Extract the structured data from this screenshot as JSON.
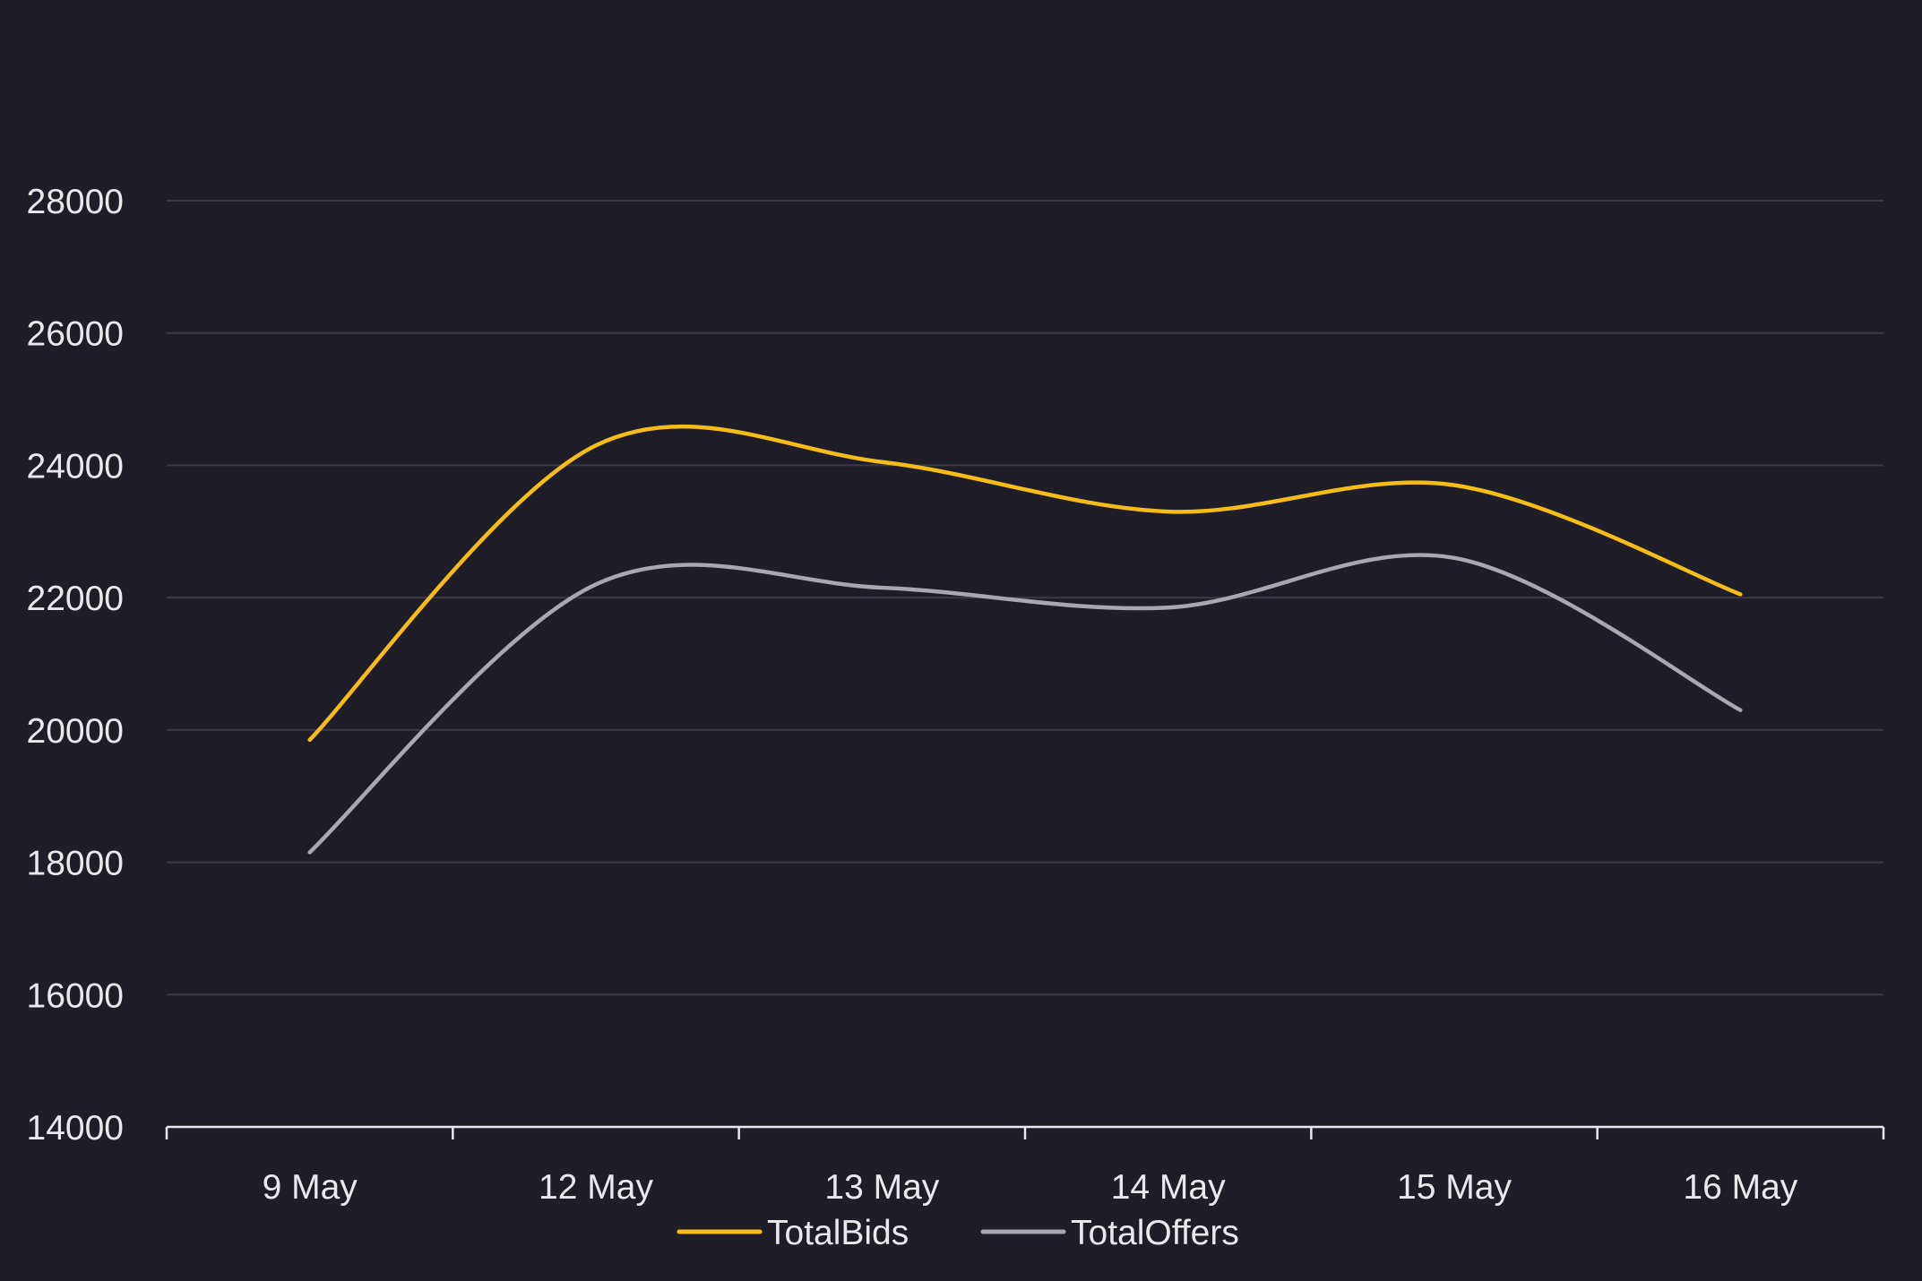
{
  "chart_data": {
    "type": "line",
    "categories": [
      "9 May",
      "12 May",
      "13 May",
      "14 May",
      "15 May",
      "16 May"
    ],
    "x": [
      "9 May",
      "12 May",
      "13 May",
      "14 May",
      "15 May",
      "16 May"
    ],
    "series": [
      {
        "name": "TotalBids",
        "color": "#f5bd18",
        "values": [
          19850,
          24300,
          24050,
          23300,
          23700,
          22050
        ]
      },
      {
        "name": "TotalOffers",
        "color": "#a9a8ae",
        "values": [
          18150,
          22200,
          22150,
          21850,
          22600,
          20300
        ]
      }
    ],
    "yticks": [
      "14000",
      "16000",
      "18000",
      "20000",
      "22000",
      "24000",
      "26000",
      "28000"
    ],
    "ylim": [
      14000,
      28000
    ],
    "grid": true,
    "legend_position": "bottom-center",
    "curve": "smooth",
    "colors": {
      "background": "#1f1e28",
      "grid": "#3a3944",
      "axis": "#e9e9ec",
      "text": "#e9e9ec"
    }
  }
}
